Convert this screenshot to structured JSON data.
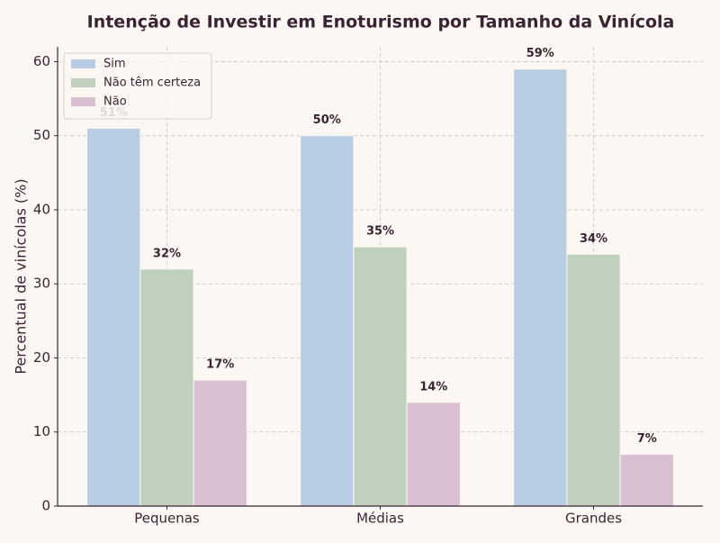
{
  "chart_data": {
    "type": "bar",
    "title": "Intenção de Investir em Enoturismo por Tamanho da Vinícola",
    "y_label": "Percentual de vinícolas (%)",
    "categories": [
      "Pequenas",
      "Médias",
      "Grandes"
    ],
    "series": [
      {
        "name": "Sim",
        "color": "#b8cde3",
        "values": [
          51,
          50,
          59
        ],
        "value_labels": [
          "51%",
          "50%",
          "59%"
        ]
      },
      {
        "name": "Não têm certeza",
        "color": "#bfd1bd",
        "values": [
          32,
          35,
          34
        ],
        "value_labels": [
          "32%",
          "35%",
          "34%"
        ]
      },
      {
        "name": "Não",
        "color": "#d8bfd1",
        "values": [
          17,
          14,
          7
        ],
        "value_labels": [
          "17%",
          "14%",
          "7%"
        ]
      }
    ],
    "ylim": [
      0,
      62
    ],
    "yticks": [
      0,
      10,
      20,
      30,
      40,
      50,
      60
    ],
    "grid": true,
    "legend": "upper left"
  }
}
